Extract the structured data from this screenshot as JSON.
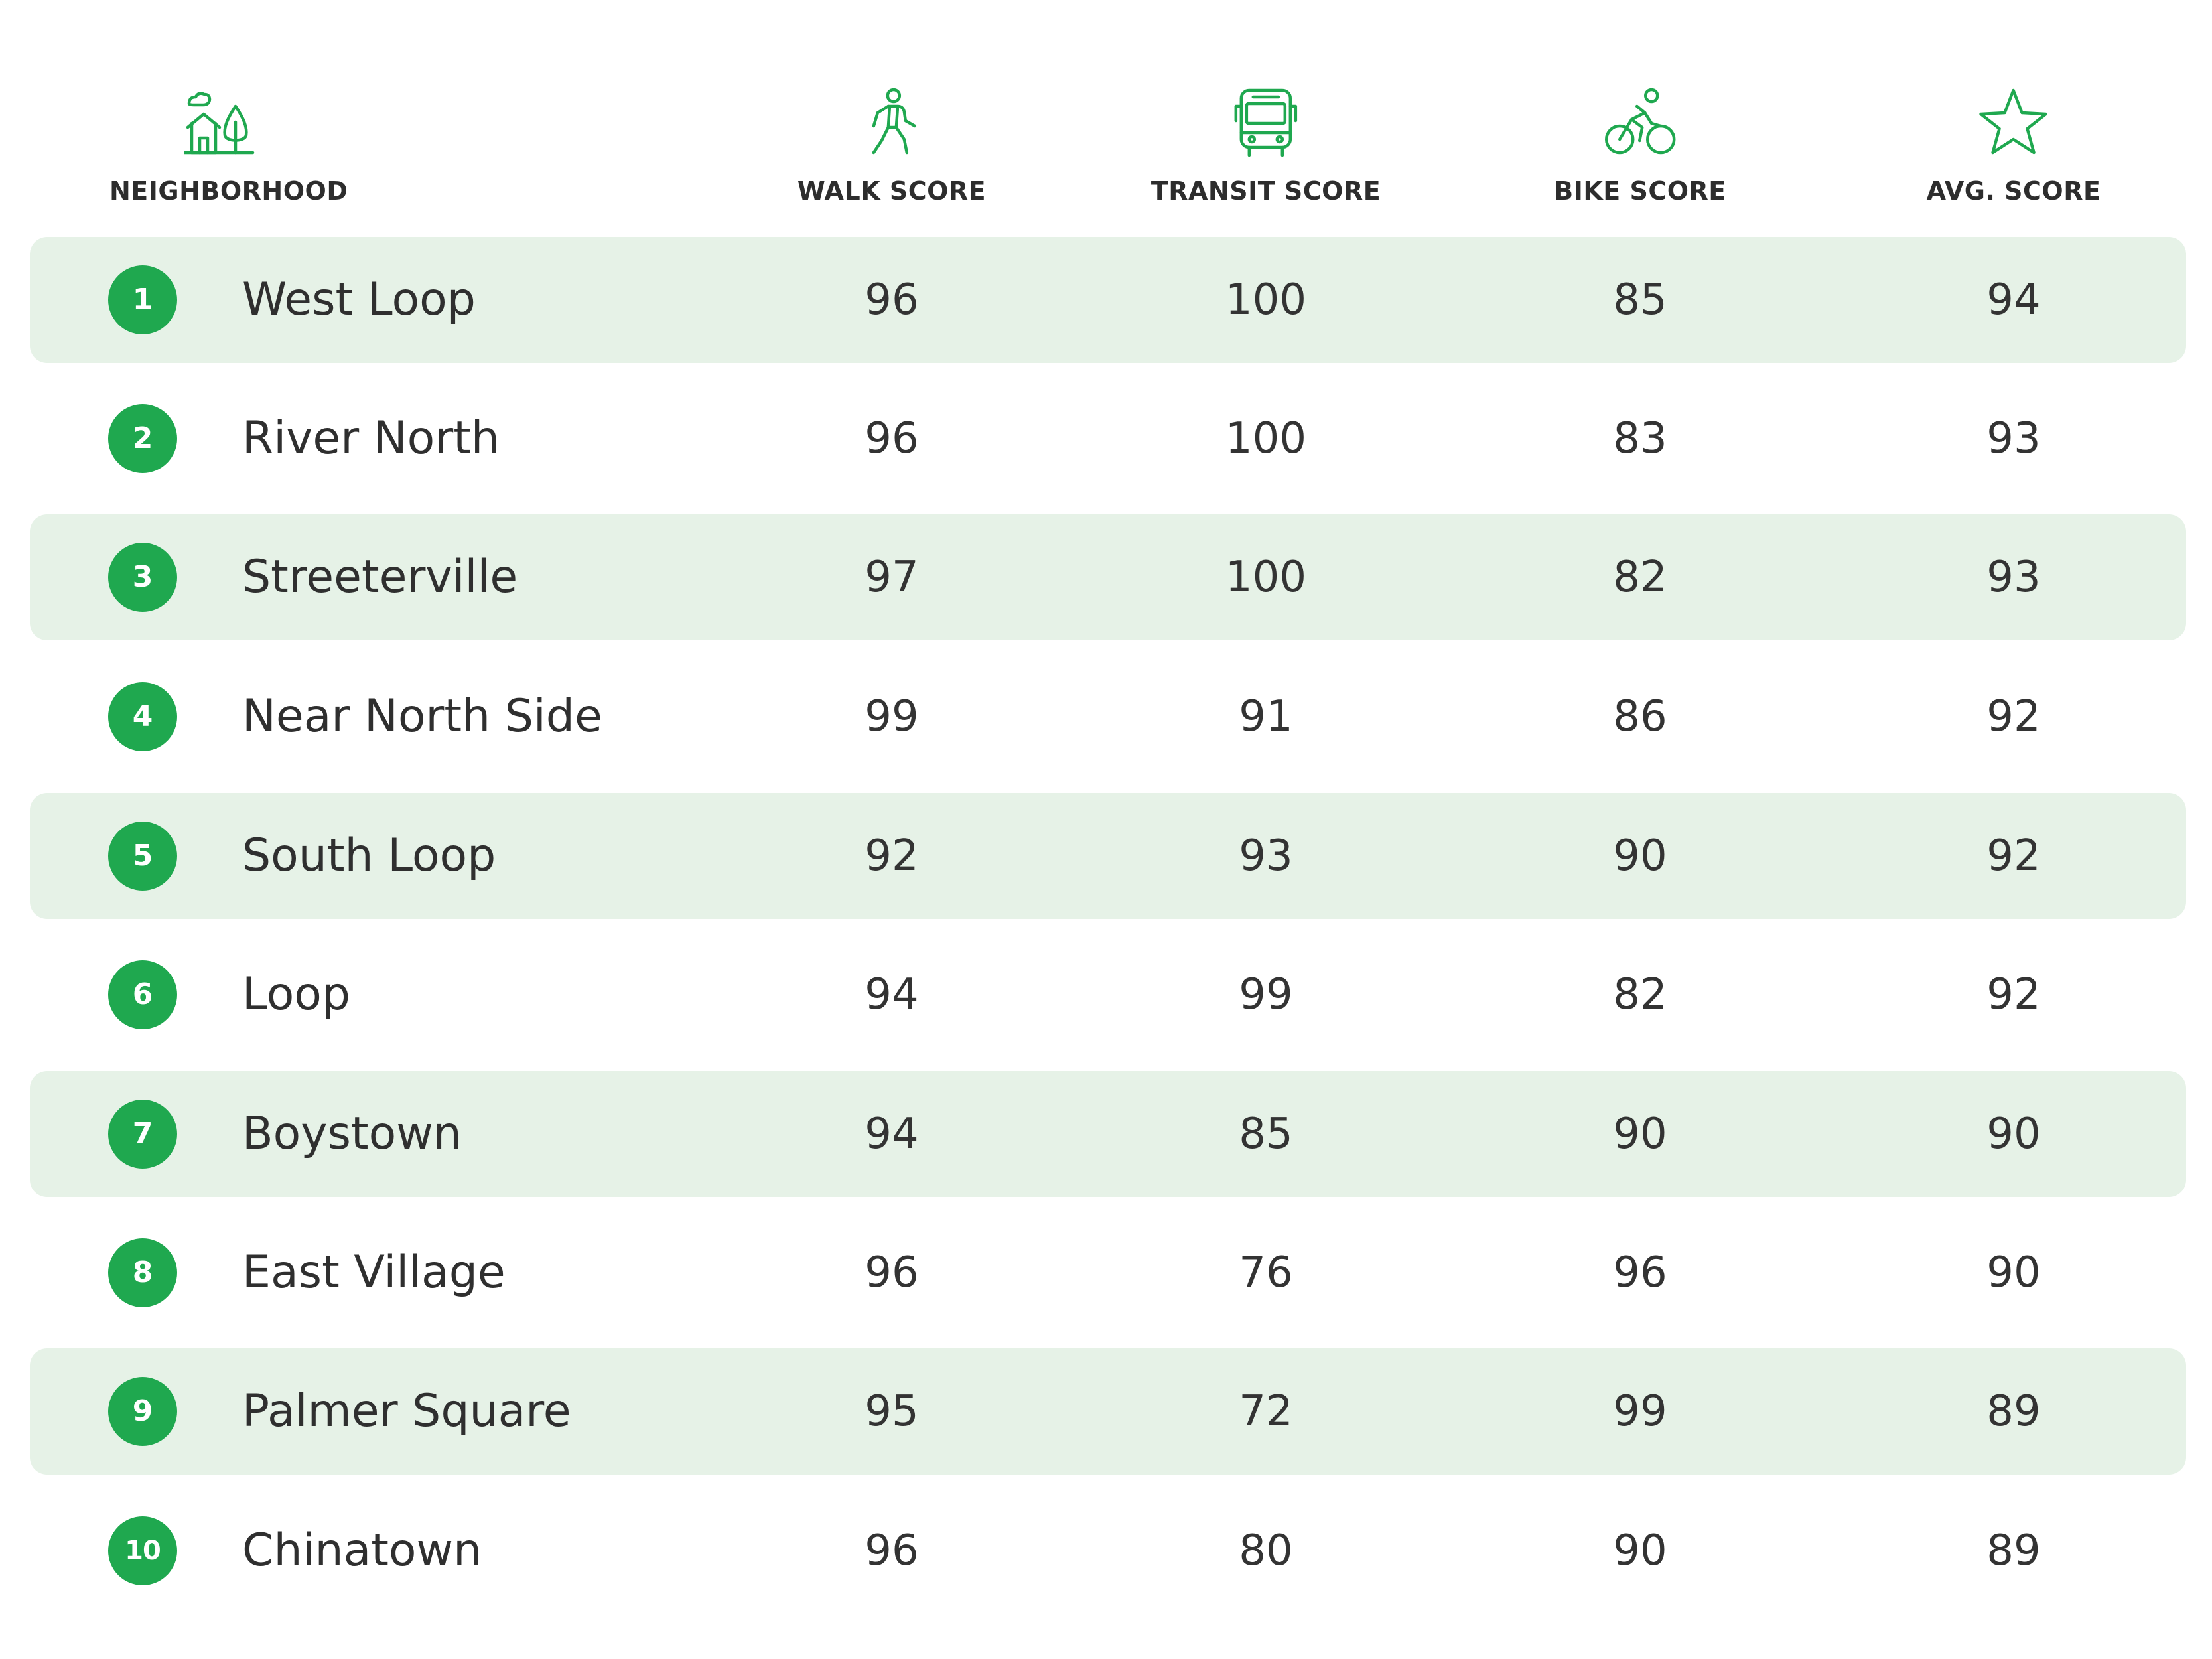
{
  "chart_data": {
    "type": "table",
    "columns": [
      {
        "key": "neighborhood",
        "label": "NEIGHBORHOOD",
        "icon": "house-tree-icon"
      },
      {
        "key": "walk",
        "label": "WALK SCORE",
        "icon": "walking-person-icon"
      },
      {
        "key": "transit",
        "label": "TRANSIT SCORE",
        "icon": "bus-icon"
      },
      {
        "key": "bike",
        "label": "BIKE SCORE",
        "icon": "cyclist-icon"
      },
      {
        "key": "avg",
        "label": "AVG. SCORE",
        "icon": "star-icon"
      }
    ],
    "rows": [
      {
        "rank": "1",
        "name": "West Loop",
        "walk": "96",
        "transit": "100",
        "bike": "85",
        "avg": "94"
      },
      {
        "rank": "2",
        "name": "River North",
        "walk": "96",
        "transit": "100",
        "bike": "83",
        "avg": "93"
      },
      {
        "rank": "3",
        "name": "Streeterville",
        "walk": "97",
        "transit": "100",
        "bike": "82",
        "avg": "93"
      },
      {
        "rank": "4",
        "name": "Near North Side",
        "walk": "99",
        "transit": "91",
        "bike": "86",
        "avg": "92"
      },
      {
        "rank": "5",
        "name": "South Loop",
        "walk": "92",
        "transit": "93",
        "bike": "90",
        "avg": "92"
      },
      {
        "rank": "6",
        "name": "Loop",
        "walk": "94",
        "transit": "99",
        "bike": "82",
        "avg": "92"
      },
      {
        "rank": "7",
        "name": "Boystown",
        "walk": "94",
        "transit": "85",
        "bike": "90",
        "avg": "90"
      },
      {
        "rank": "8",
        "name": "East Village",
        "walk": "96",
        "transit": "76",
        "bike": "96",
        "avg": "90"
      },
      {
        "rank": "9",
        "name": "Palmer Square",
        "walk": "95",
        "transit": "72",
        "bike": "99",
        "avg": "89"
      },
      {
        "rank": "10",
        "name": "Chinatown",
        "walk": "96",
        "transit": "80",
        "bike": "90",
        "avg": "89"
      }
    ]
  },
  "colors": {
    "accent_green": "#1fa84f",
    "row_shade": "#e6f2e7",
    "text": "#2f2f2f"
  }
}
